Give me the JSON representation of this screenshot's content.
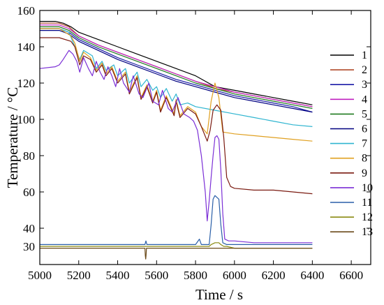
{
  "chart_data": {
    "type": "line",
    "title": "",
    "xlabel": "Time / s",
    "ylabel": "Temperature / °C",
    "xlim": [
      5000,
      6700
    ],
    "ylim": [
      20,
      160
    ],
    "xticks": [
      5000,
      5200,
      5400,
      5600,
      5800,
      6000,
      6200,
      6400,
      6600
    ],
    "yticks": [
      40,
      60,
      80,
      100,
      120,
      140,
      160
    ],
    "ytick_labels_shown": [
      30,
      40,
      60,
      80,
      100,
      120,
      140,
      160
    ],
    "grid": false,
    "legend_position": "right",
    "series": [
      {
        "name": "1",
        "color": "#000000",
        "x": [
          5000,
          5080,
          5120,
          5160,
          5200,
          5300,
          5400,
          5500,
          5600,
          5700,
          5800,
          5850,
          5900,
          6000,
          6100,
          6200,
          6300,
          6400
        ],
        "y": [
          154,
          154,
          153,
          151,
          148,
          144,
          140,
          136,
          132,
          128,
          124,
          121,
          118,
          116,
          114,
          112,
          110,
          108
        ]
      },
      {
        "name": "2",
        "color": "#b04a2a",
        "x": [
          5000,
          5100,
          5150,
          5200,
          5300,
          5400,
          5500,
          5600,
          5700,
          5800,
          5880,
          5900,
          6000,
          6100,
          6200,
          6300,
          6400
        ],
        "y": [
          153,
          153,
          151,
          146,
          141,
          137,
          133,
          129,
          125,
          121,
          118,
          117,
          115,
          113,
          111,
          109,
          107
        ]
      },
      {
        "name": "3",
        "color": "#1a1aa8",
        "x": [
          5000,
          5100,
          5150,
          5200,
          5300,
          5400,
          5500,
          5600,
          5700,
          5800,
          5900,
          6000,
          6100,
          6200,
          6300,
          6400
        ],
        "y": [
          150,
          150,
          148,
          144,
          139,
          134,
          130,
          126,
          122,
          119,
          116,
          113,
          111,
          109,
          107,
          104
        ]
      },
      {
        "name": "4",
        "color": "#c020c0",
        "x": [
          5000,
          5100,
          5150,
          5200,
          5300,
          5400,
          5500,
          5600,
          5700,
          5800,
          5900,
          6000,
          6100,
          6200,
          6300,
          6400
        ],
        "y": [
          152,
          152,
          150,
          146,
          141,
          137,
          133,
          129,
          125,
          121,
          118,
          115,
          113,
          111,
          109,
          107
        ]
      },
      {
        "name": "5",
        "color": "#1f7a1f",
        "x": [
          5000,
          5100,
          5150,
          5200,
          5300,
          5400,
          5500,
          5600,
          5700,
          5800,
          5900,
          6000,
          6100,
          6200,
          6300,
          6400
        ],
        "y": [
          151,
          151,
          149,
          145,
          140,
          136,
          132,
          128,
          124,
          120,
          117,
          114,
          112,
          110,
          108,
          106
        ]
      },
      {
        "name": "6",
        "color": "#000080",
        "x": [
          5000,
          5100,
          5150,
          5200,
          5300,
          5400,
          5500,
          5600,
          5700,
          5800,
          5900,
          6000,
          6100,
          6200,
          6300,
          6400
        ],
        "y": [
          149,
          149,
          147,
          143,
          138,
          133,
          129,
          125,
          121,
          118,
          115,
          112,
          110,
          108,
          106,
          104
        ]
      },
      {
        "name": "7",
        "color": "#2fb5d0",
        "x": [
          5000,
          5100,
          5150,
          5180,
          5205,
          5225,
          5270,
          5290,
          5320,
          5340,
          5380,
          5400,
          5440,
          5460,
          5500,
          5520,
          5550,
          5580,
          5600,
          5620,
          5650,
          5680,
          5700,
          5720,
          5760,
          5800,
          5900,
          6000,
          6100,
          6200,
          6300,
          6400
        ],
        "y": [
          150,
          150,
          148,
          140,
          133,
          138,
          135,
          128,
          132,
          127,
          130,
          124,
          128,
          120,
          126,
          118,
          122,
          116,
          118,
          112,
          117,
          110,
          114,
          108,
          109,
          107,
          105,
          103,
          101,
          99,
          97,
          96
        ]
      },
      {
        "name": "8",
        "color": "#e0a020",
        "x": [
          5000,
          5100,
          5160,
          5180,
          5205,
          5225,
          5260,
          5290,
          5320,
          5340,
          5370,
          5400,
          5440,
          5460,
          5500,
          5520,
          5550,
          5580,
          5600,
          5620,
          5650,
          5690,
          5700,
          5720,
          5760,
          5800,
          5830,
          5860,
          5880,
          5900,
          5920,
          5940,
          6000,
          6100,
          6200,
          6300,
          6400
        ],
        "y": [
          150,
          150,
          146,
          142,
          132,
          137,
          134,
          127,
          131,
          125,
          129,
          121,
          126,
          115,
          124,
          112,
          119,
          110,
          116,
          105,
          113,
          103,
          111,
          102,
          107,
          104,
          96,
          92,
          110,
          120,
          112,
          93,
          92,
          91,
          90,
          89,
          88
        ]
      },
      {
        "name": "9",
        "color": "#7a1a10",
        "x": [
          5000,
          5100,
          5160,
          5180,
          5205,
          5225,
          5260,
          5290,
          5320,
          5340,
          5370,
          5400,
          5440,
          5460,
          5500,
          5520,
          5550,
          5580,
          5600,
          5620,
          5650,
          5690,
          5700,
          5720,
          5760,
          5800,
          5830,
          5860,
          5875,
          5890,
          5910,
          5930,
          5945,
          5960,
          5980,
          6000,
          6100,
          6200,
          6300,
          6400
        ],
        "y": [
          145,
          145,
          143,
          140,
          130,
          135,
          133,
          126,
          130,
          124,
          128,
          120,
          125,
          114,
          123,
          111,
          118,
          109,
          115,
          104,
          112,
          102,
          110,
          101,
          106,
          103,
          96,
          88,
          94,
          105,
          108,
          105,
          90,
          68,
          63,
          62,
          61,
          61,
          60,
          59
        ]
      },
      {
        "name": "10",
        "color": "#7b2fd6",
        "x": [
          5000,
          5080,
          5100,
          5120,
          5150,
          5170,
          5190,
          5205,
          5225,
          5250,
          5270,
          5290,
          5310,
          5330,
          5350,
          5370,
          5390,
          5410,
          5430,
          5460,
          5480,
          5510,
          5530,
          5560,
          5580,
          5610,
          5630,
          5660,
          5680,
          5710,
          5740,
          5770,
          5790,
          5810,
          5830,
          5850,
          5860,
          5870,
          5880,
          5890,
          5900,
          5910,
          5920,
          5930,
          5940,
          5950,
          5970,
          6000,
          6100,
          6200,
          6300,
          6400
        ],
        "y": [
          128,
          129,
          130,
          133,
          138,
          136,
          132,
          126,
          134,
          128,
          124,
          132,
          126,
          122,
          129,
          124,
          118,
          128,
          120,
          115,
          124,
          114,
          112,
          120,
          110,
          108,
          116,
          106,
          104,
          112,
          103,
          101,
          99,
          94,
          80,
          60,
          44,
          55,
          68,
          80,
          90,
          91,
          89,
          72,
          48,
          34,
          33,
          33,
          32,
          32,
          32,
          32
        ]
      },
      {
        "name": "11",
        "color": "#2a5fa8",
        "x": [
          5000,
          5500,
          5540,
          5545,
          5550,
          5800,
          5820,
          5830,
          5850,
          5870,
          5880,
          5890,
          5900,
          5920,
          5930,
          5940,
          5960,
          6000,
          6400
        ],
        "y": [
          31,
          31,
          31,
          33,
          31,
          31,
          34,
          31,
          31,
          31,
          42,
          56,
          58,
          56,
          42,
          32,
          31,
          31,
          31
        ]
      },
      {
        "name": "12",
        "color": "#8a8a10",
        "x": [
          5000,
          5870,
          5880,
          5900,
          5920,
          5930,
          5945,
          5960,
          6000,
          6400
        ],
        "y": [
          30,
          30,
          31,
          32,
          32,
          31,
          30,
          30,
          29,
          29
        ]
      },
      {
        "name": "13",
        "color": "#6b4a1a",
        "x": [
          5000,
          5540,
          5542,
          5544,
          5546,
          5548,
          6400
        ],
        "y": [
          29,
          29,
          25,
          23,
          25,
          29,
          29
        ]
      }
    ]
  }
}
